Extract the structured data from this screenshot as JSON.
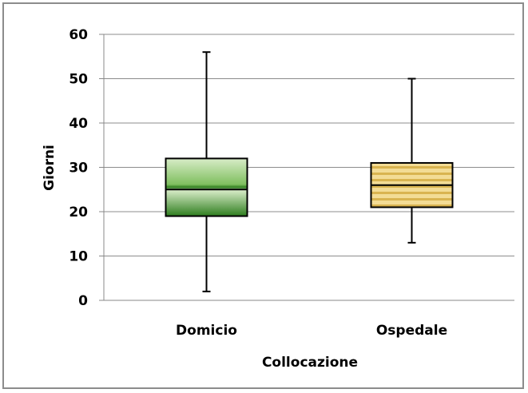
{
  "chart_data": {
    "type": "boxplot",
    "title": "",
    "xlabel": "Collocazione",
    "ylabel": "Giorni",
    "ylim": [
      0,
      60
    ],
    "yticks": [
      0,
      10,
      20,
      30,
      40,
      50,
      60
    ],
    "grid": true,
    "categories": [
      "Domicio",
      "Ospedale"
    ],
    "boxes": [
      {
        "category": "Domicio",
        "min": 2,
        "q1": 19,
        "median": 25,
        "q3": 32,
        "max": 56,
        "color": "#2e7d1e"
      },
      {
        "category": "Ospedale",
        "min": 13,
        "q1": 21,
        "median": 26,
        "q3": 31,
        "max": 50,
        "color": "#e0c060"
      }
    ]
  }
}
